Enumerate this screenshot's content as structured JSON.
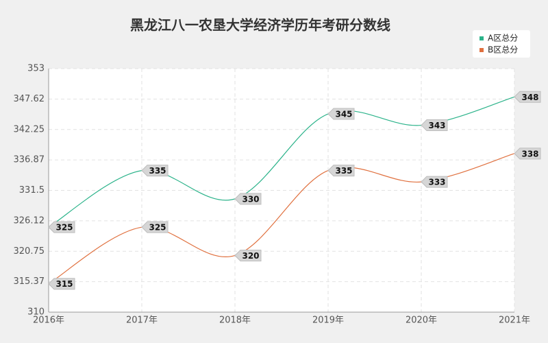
{
  "chart_data": {
    "type": "line",
    "title": "黑龙江八一农垦大学经济学历年考研分数线",
    "categories": [
      "2016年",
      "2017年",
      "2018年",
      "2019年",
      "2020年",
      "2021年"
    ],
    "series": [
      {
        "name": "A区总分",
        "color": "#2bb38a",
        "values": [
          325,
          335,
          330,
          345,
          343,
          348
        ]
      },
      {
        "name": "B区总分",
        "color": "#e0703e",
        "values": [
          315,
          325,
          320,
          335,
          333,
          338
        ]
      }
    ],
    "ylim": [
      310,
      353
    ],
    "yticks": [
      310,
      315.37,
      320.75,
      326.12,
      331.5,
      336.87,
      342.25,
      347.62,
      353
    ],
    "grid": true,
    "smooth": true,
    "legend": "top-right"
  }
}
